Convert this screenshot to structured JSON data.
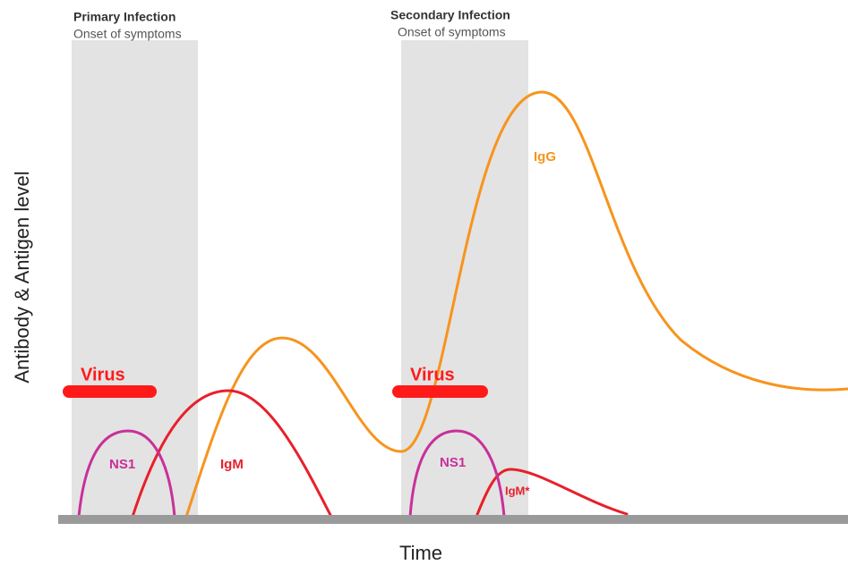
{
  "primary": {
    "title": "Primary Infection",
    "subtitle": "Onset of symptoms"
  },
  "secondary": {
    "title": "Secondary Infection",
    "subtitle": "Onset of symptoms"
  },
  "labels": {
    "virus_1": "Virus",
    "virus_2": "Virus",
    "ns1_1": "NS1",
    "ns1_2": "NS1",
    "igm_1": "IgM",
    "igm_2": "IgM*",
    "igg": "IgG"
  },
  "axes": {
    "y_label": "Antibody & Antigen level",
    "x_label": "Time"
  }
}
